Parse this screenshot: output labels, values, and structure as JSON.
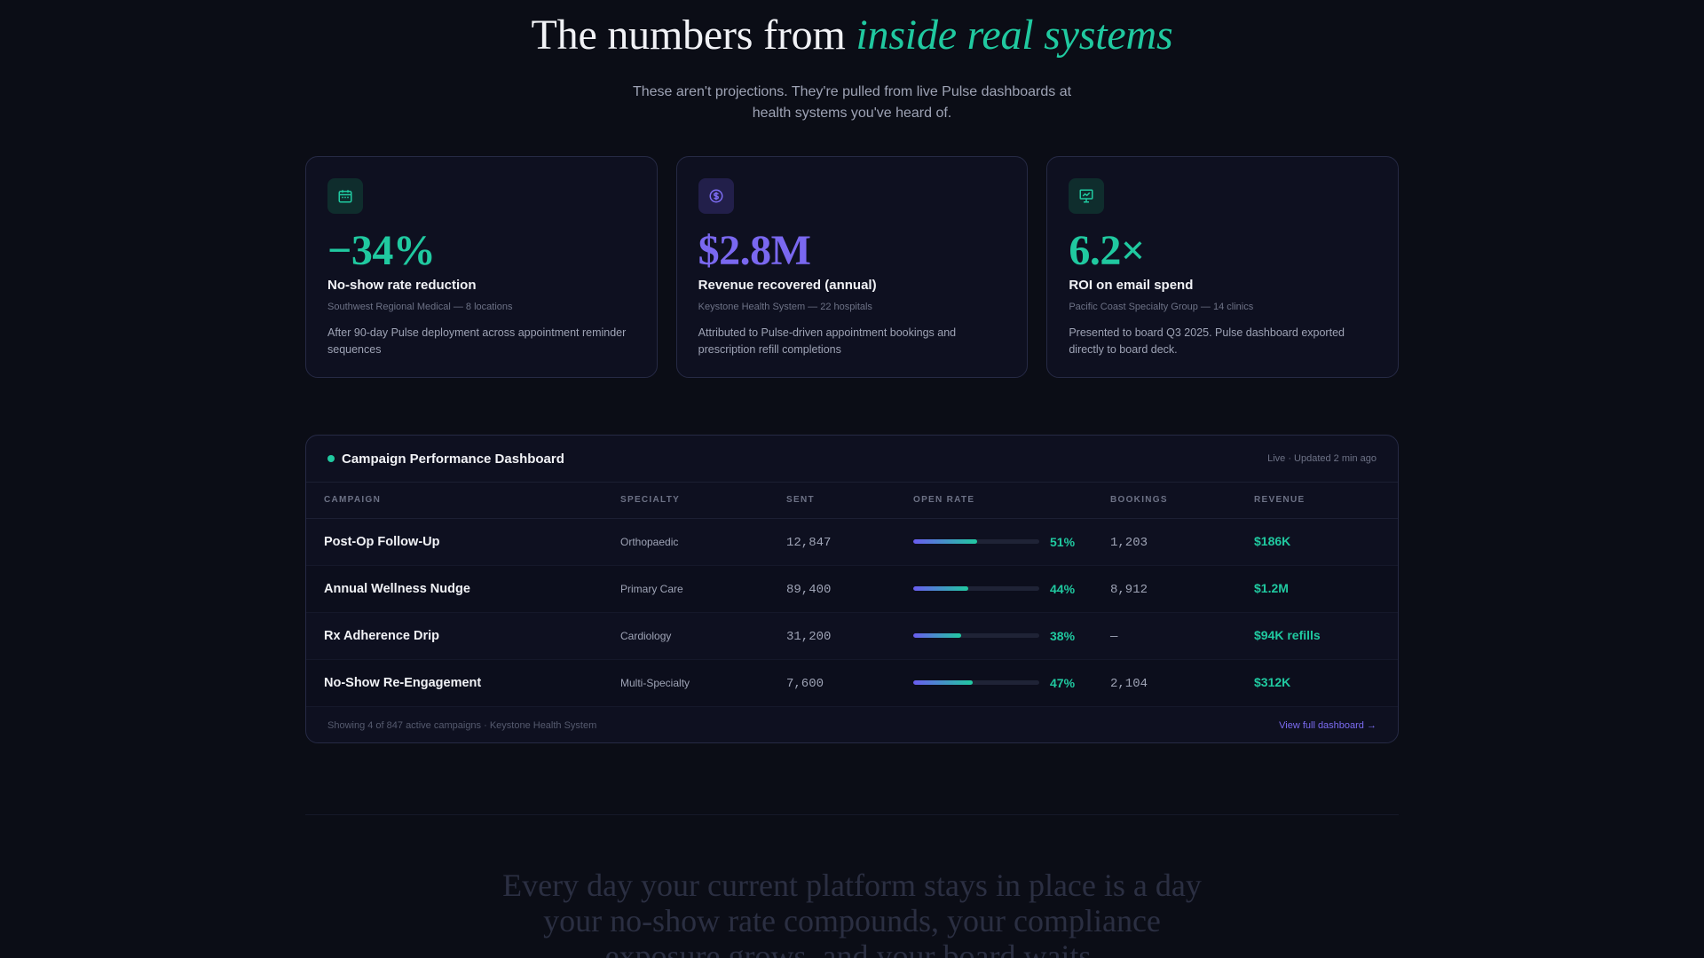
{
  "hero": {
    "title_plain": "The numbers from ",
    "title_accent": "inside real systems",
    "subtitle": "These aren't projections. They're pulled from live Pulse dashboards at health systems you've heard of."
  },
  "cards": [
    {
      "icon": "calendar-icon",
      "metric": "−34%",
      "title": "No-show rate reduction",
      "source": "Southwest Regional Medical — 8 locations",
      "description": "After 90-day Pulse deployment across appointment reminder sequences",
      "accent": "#20c9a0"
    },
    {
      "icon": "dollar-icon",
      "metric": "$2.8M",
      "title": "Revenue recovered (annual)",
      "source": "Keystone Health System — 22 hospitals",
      "description": "Attributed to Pulse-driven appointment bookings and prescription refill completions",
      "accent": "#7a68f0"
    },
    {
      "icon": "presentation-chart-icon",
      "metric": "6.2×",
      "title": "ROI on email spend",
      "source": "Pacific Coast Specialty Group — 14 clinics",
      "description": "Presented to board Q3 2025. Pulse dashboard exported directly to board deck.",
      "accent": "#20c9a0"
    }
  ],
  "dashboard": {
    "title": "Campaign Performance Dashboard",
    "status": "Live · Updated 2 min ago",
    "columns": [
      "CAMPAIGN",
      "SPECIALTY",
      "SENT",
      "OPEN RATE",
      "BOOKINGS",
      "REVENUE"
    ],
    "rows": [
      {
        "campaign": "Post-Op Follow-Up",
        "specialty": "Orthopaedic",
        "sent": "12,847",
        "open_rate": "51%",
        "open_rate_value": 0.51,
        "bookings": "1,203",
        "revenue": "$186K"
      },
      {
        "campaign": "Annual Wellness Nudge",
        "specialty": "Primary Care",
        "sent": "89,400",
        "open_rate": "44%",
        "open_rate_value": 0.44,
        "bookings": "8,912",
        "revenue": "$1.2M"
      },
      {
        "campaign": "Rx Adherence Drip",
        "specialty": "Cardiology",
        "sent": "31,200",
        "open_rate": "38%",
        "open_rate_value": 0.38,
        "bookings": "—",
        "revenue": "$94K refills"
      },
      {
        "campaign": "No-Show Re-Engagement",
        "specialty": "Multi-Specialty",
        "sent": "7,600",
        "open_rate": "47%",
        "open_rate_value": 0.47,
        "bookings": "2,104",
        "revenue": "$312K"
      }
    ],
    "footer_text": "Showing 4 of 847 active campaigns · Keystone Health System",
    "footer_link": "View full dashboard →"
  },
  "closing": {
    "text": "Every day your current platform stays in place is a day your no-show rate compounds, your compliance exposure grows, and your board waits."
  }
}
